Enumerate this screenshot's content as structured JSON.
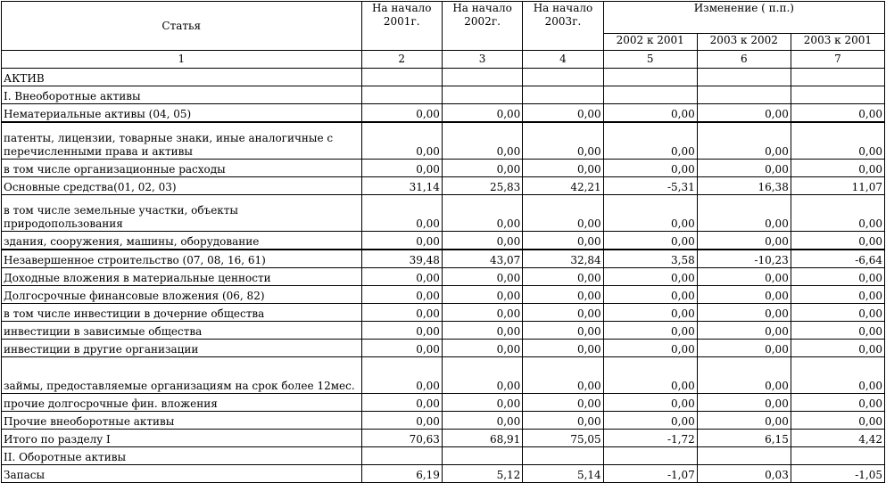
{
  "header": {
    "col_article": "Статья",
    "col_2001": "На начало 2001г.",
    "col_2002": "На начало 2002г.",
    "col_2003": "На начало 2003г.",
    "col_change": "Изменение ( п.п.)",
    "sub_2002_2001": "2002 к 2001",
    "sub_2003_2002": "2003 к 2002",
    "sub_2003_2001": "2003 к 2001",
    "index": [
      "1",
      "2",
      "3",
      "4",
      "5",
      "6",
      "7"
    ]
  },
  "rows": [
    {
      "label": "АКТИВ",
      "values": [
        "",
        "",
        "",
        "",
        "",
        ""
      ]
    },
    {
      "label": "I. Внеоборотные активы",
      "values": [
        "",
        "",
        "",
        "",
        "",
        ""
      ]
    },
    {
      "label": "Нематериальные активы (04, 05)",
      "values": [
        "0,00",
        "0,00",
        "0,00",
        "0,00",
        "0,00",
        "0,00"
      ]
    },
    {
      "label": "патенты, лицензии, товарные знаки, иные аналогичные с перечисленными права и активы",
      "values": [
        "0,00",
        "0,00",
        "0,00",
        "0,00",
        "0,00",
        "0,00"
      ]
    },
    {
      "label": "в том числе организационные расходы",
      "values": [
        "0,00",
        "0,00",
        "0,00",
        "0,00",
        "0,00",
        "0,00"
      ]
    },
    {
      "label": "Основные средства(01, 02, 03)",
      "values": [
        "31,14",
        "25,83",
        "42,21",
        "-5,31",
        "16,38",
        "11,07"
      ]
    },
    {
      "label": "в том числе земельные участки, объекты природопользования",
      "values": [
        "0,00",
        "0,00",
        "0,00",
        "0,00",
        "0,00",
        "0,00"
      ]
    },
    {
      "label": "здания, сооружения, машины, оборудование",
      "values": [
        "0,00",
        "0,00",
        "0,00",
        "0,00",
        "0,00",
        "0,00"
      ]
    },
    {
      "label": "Незавершенное строительство (07, 08, 16, 61)",
      "values": [
        "39,48",
        "43,07",
        "32,84",
        "3,58",
        "-10,23",
        "-6,64"
      ]
    },
    {
      "label": "Доходные вложения в материальные ценности",
      "values": [
        "0,00",
        "0,00",
        "0,00",
        "0,00",
        "0,00",
        "0,00"
      ]
    },
    {
      "label": "Долгосрочные финансовые вложения (06, 82)",
      "values": [
        "0,00",
        "0,00",
        "0,00",
        "0,00",
        "0,00",
        "0,00"
      ]
    },
    {
      "label": "в том числе инвестиции в дочерние общества",
      "values": [
        "0,00",
        "0,00",
        "0,00",
        "0,00",
        "0,00",
        "0,00"
      ]
    },
    {
      "label": "инвестиции в зависимые общества",
      "values": [
        "0,00",
        "0,00",
        "0,00",
        "0,00",
        "0,00",
        "0,00"
      ]
    },
    {
      "label": "инвестиции в другие организации",
      "values": [
        "0,00",
        "0,00",
        "0,00",
        "0,00",
        "0,00",
        "0,00"
      ]
    },
    {
      "label": "займы, предоставляемые организациям на срок более 12мес.",
      "values": [
        "0,00",
        "0,00",
        "0,00",
        "0,00",
        "0,00",
        "0,00"
      ]
    },
    {
      "label": "прочие долгосрочные фин. вложения",
      "values": [
        "0,00",
        "0,00",
        "0,00",
        "0,00",
        "0,00",
        "0,00"
      ]
    },
    {
      "label": "Прочие внеоборотные активы",
      "values": [
        "0,00",
        "0,00",
        "0,00",
        "0,00",
        "0,00",
        "0,00"
      ]
    },
    {
      "label": "Итого по разделу I",
      "values": [
        "70,63",
        "68,91",
        "75,05",
        "-1,72",
        "6,15",
        "4,42"
      ]
    },
    {
      "label": "II. Оборотные активы",
      "values": [
        "",
        "",
        "",
        "",
        "",
        ""
      ]
    },
    {
      "label": "Запасы",
      "values": [
        "6,19",
        "5,12",
        "5,14",
        "-1,07",
        "0,03",
        "-1,05"
      ]
    }
  ]
}
